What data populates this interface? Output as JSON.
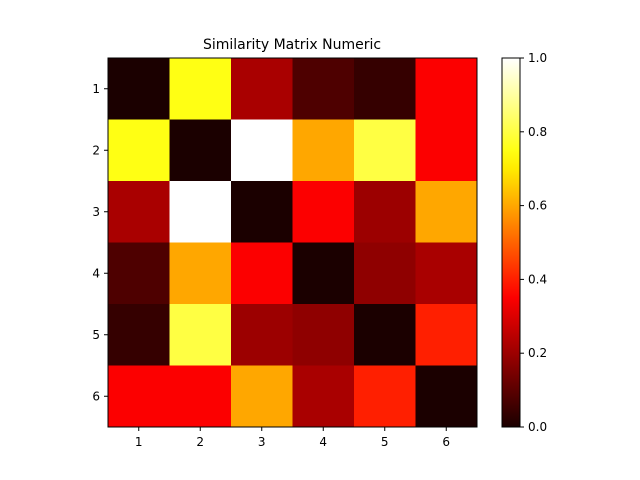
{
  "chart_data": {
    "type": "heatmap",
    "title": "Similarity Matrix Numeric",
    "xlabel": "",
    "ylabel": "",
    "x_categories": [
      "1",
      "2",
      "3",
      "4",
      "5",
      "6"
    ],
    "y_categories": [
      "1",
      "2",
      "3",
      "4",
      "5",
      "6"
    ],
    "values": [
      [
        0.0,
        0.75,
        0.22,
        0.08,
        0.04,
        0.35
      ],
      [
        0.75,
        0.0,
        1.0,
        0.6,
        0.8,
        0.35
      ],
      [
        0.22,
        1.0,
        0.0,
        0.35,
        0.2,
        0.6
      ],
      [
        0.08,
        0.6,
        0.35,
        0.0,
        0.18,
        0.22
      ],
      [
        0.04,
        0.8,
        0.2,
        0.18,
        0.0,
        0.4
      ],
      [
        0.35,
        0.35,
        0.6,
        0.22,
        0.4,
        0.0
      ]
    ],
    "colormap": "hot",
    "colorbar": {
      "range": [
        0.0,
        1.0
      ],
      "ticks": [
        "0.0",
        "0.2",
        "0.4",
        "0.6",
        "0.8",
        "1.0"
      ]
    },
    "grid": false
  }
}
